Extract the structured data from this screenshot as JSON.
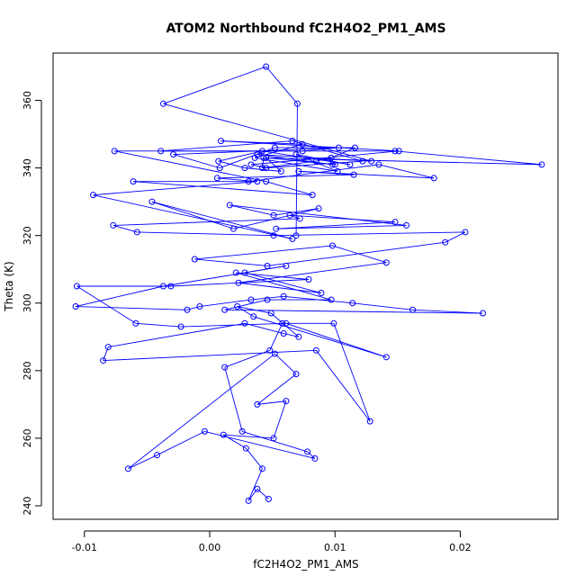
{
  "chart_data": {
    "type": "line",
    "title": "ATOM2 Northbound fC2H4O2_PM1_AMS",
    "xlabel": "fC2H4O2_PM1_AMS",
    "ylabel": "Theta (K)",
    "xlim": [
      -0.0125,
      0.0278
    ],
    "ylim": [
      236,
      374
    ],
    "x_ticks": [
      -0.01,
      0.0,
      0.01,
      0.02
    ],
    "x_tick_labels": [
      "-0.01",
      "0.00",
      "0.01",
      "0.02"
    ],
    "y_ticks": [
      240,
      260,
      280,
      300,
      320,
      340,
      360
    ],
    "y_tick_labels": [
      "240",
      "260",
      "280",
      "300",
      "320",
      "340",
      "360"
    ],
    "grid": false,
    "series": [
      {
        "color": "#0000ff",
        "marker": "open-circle",
        "x": [
          0.0047,
          0.0038,
          0.0031,
          0.0042,
          0.0029,
          0.0011,
          0.0051,
          0.0061,
          0.0038,
          0.0069,
          0.0052,
          -0.0065,
          -0.0042,
          -0.0004,
          0.0084,
          0.0078,
          0.0026,
          0.0012,
          0.0048,
          0.0058,
          0.0099,
          0.0128,
          0.0085,
          -0.0085,
          -0.0081,
          0.0028,
          0.0059,
          0.0071,
          0.0049,
          0.0022,
          0.0035,
          0.0141,
          0.0061,
          -0.0023,
          -0.0059,
          -0.0106,
          -0.0031,
          0.0079,
          0.0021,
          0.0097,
          0.0046,
          0.0012,
          0.0218,
          0.0162,
          0.0114,
          0.0059,
          0.0033,
          -0.0008,
          -0.0018,
          -0.0107,
          -0.0037,
          0.0061,
          0.0028,
          0.0089,
          0.0023,
          0.0141,
          0.0098,
          -0.0012,
          0.0046,
          0.0188,
          0.0204,
          0.0051,
          -0.0058,
          -0.0077,
          0.0072,
          0.0064,
          0.0148,
          0.0053,
          0.0157,
          0.0016,
          0.0051,
          0.0087,
          0.0019,
          -0.0046,
          0.0066,
          -0.0093,
          0.0038,
          0.0006,
          0.0115,
          0.0071,
          0.0179,
          0.0135,
          0.0031,
          -0.0061,
          0.0082,
          0.0045,
          -0.0076,
          0.0148,
          0.0265,
          0.0043,
          0.0042,
          0.0085,
          0.0097,
          0.0116,
          0.0052,
          0.0008,
          -0.0029,
          0.0103,
          0.0074,
          -0.0039,
          0.0066,
          0.0122,
          0.0045,
          0.0033,
          0.0151,
          0.0009,
          0.0074,
          0.0036,
          0.0102,
          0.0069,
          0.0112,
          0.0042,
          0.0007,
          0.0028,
          0.0057,
          0.0045,
          0.01,
          0.0098,
          0.0038,
          0.0129,
          -0.0037,
          0.0045,
          0.007,
          0.0069
        ],
        "y": [
          242,
          245,
          241.5,
          251,
          257,
          261,
          260,
          271,
          270,
          279,
          285,
          251,
          255,
          262,
          254,
          256,
          262,
          281,
          286,
          294,
          294,
          265,
          286,
          283,
          287,
          294,
          291,
          290,
          297,
          299,
          296,
          284,
          294,
          293,
          294,
          305,
          305,
          307,
          309,
          301,
          301,
          298,
          297,
          298,
          300,
          302,
          301,
          299,
          298,
          299,
          305,
          311,
          309,
          303,
          306,
          312,
          317,
          313,
          311,
          318,
          321,
          320,
          321,
          323,
          325,
          326,
          324,
          322,
          323,
          329,
          326,
          328,
          322,
          330,
          319,
          332,
          336,
          337,
          338,
          339,
          337,
          341,
          336,
          336,
          332,
          336,
          345,
          345,
          341,
          343,
          340,
          342,
          343,
          346,
          346,
          340,
          344,
          346,
          345,
          345,
          348,
          342,
          340,
          341,
          345,
          348,
          347,
          343,
          339,
          344,
          341,
          345,
          342,
          340,
          339,
          343,
          341,
          341,
          344,
          342,
          359,
          370,
          359,
          320
        ]
      }
    ]
  }
}
